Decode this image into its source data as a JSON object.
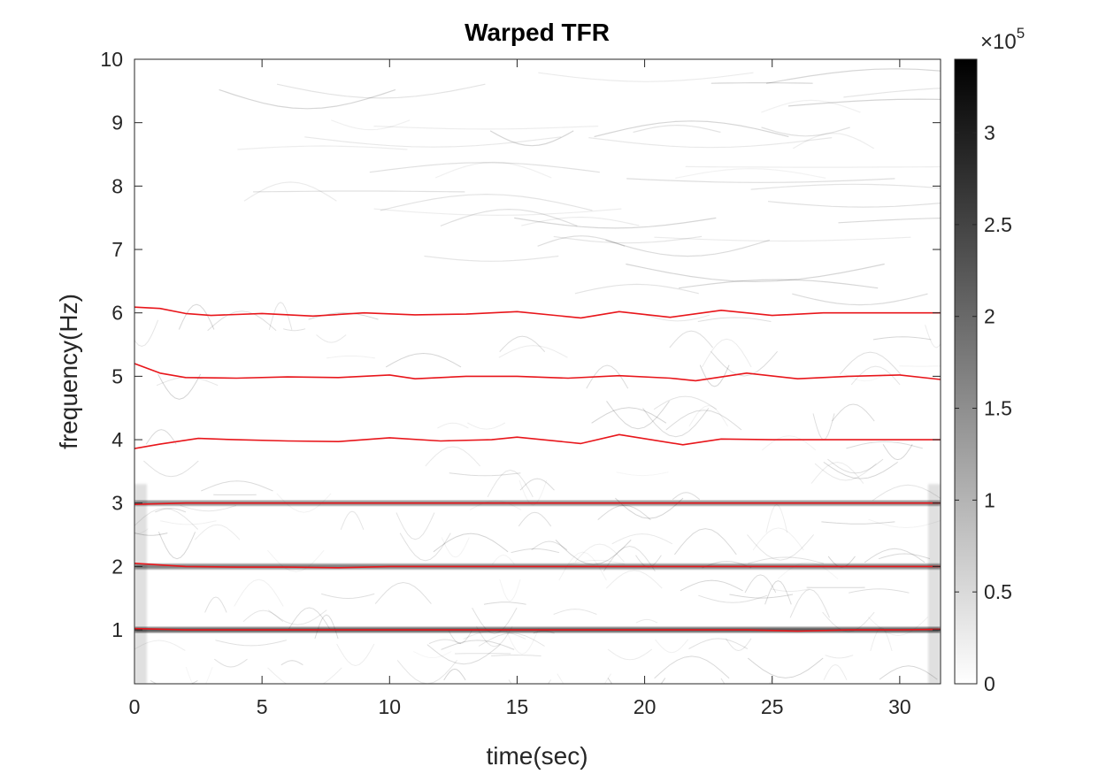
{
  "chart_data": {
    "type": "heatmap",
    "title": "Warped TFR",
    "xlabel": "time(sec)",
    "ylabel": "frequency(Hz)",
    "xlim": [
      0,
      31.6
    ],
    "ylim": [
      0.15,
      10
    ],
    "xticks": [
      0,
      5,
      10,
      15,
      20,
      25,
      30
    ],
    "yticks": [
      1,
      2,
      3,
      4,
      5,
      6,
      7,
      8,
      9,
      10
    ],
    "colormap": "gray-reversed",
    "colorbar": {
      "min": 0,
      "max": 3.4,
      "ticks": [
        0,
        0.5,
        1,
        1.5,
        2,
        2.5,
        3
      ],
      "tick_labels": [
        "0",
        "0.5",
        "1",
        "1.5",
        "2",
        "2.5",
        "3"
      ],
      "exponent_label": "×10",
      "exponent_power": "5"
    },
    "colors": {
      "ridge": "#e8161b",
      "axis": "#262626"
    },
    "ridges": [
      {
        "x": [
          0,
          2,
          4,
          6,
          8,
          10,
          12,
          14,
          16,
          18,
          20,
          22,
          24,
          26,
          28,
          30,
          31.6
        ],
        "y": [
          1.02,
          1.0,
          1.0,
          1.0,
          1.0,
          1.0,
          1.0,
          1.0,
          1.0,
          1.0,
          1.0,
          1.0,
          1.0,
          0.98,
          1.0,
          1.0,
          1.01
        ]
      },
      {
        "x": [
          0,
          2,
          4,
          6,
          8,
          10,
          12,
          14,
          16,
          18,
          20,
          22,
          24,
          26,
          28,
          30,
          31.6
        ],
        "y": [
          2.05,
          2.0,
          1.99,
          1.99,
          1.98,
          2.0,
          2.0,
          2.0,
          2.0,
          2.0,
          2.0,
          2.0,
          2.0,
          2.0,
          2.0,
          2.0,
          2.0
        ]
      },
      {
        "x": [
          0,
          2,
          4,
          6,
          8,
          10,
          12,
          14,
          16,
          18,
          20,
          22,
          24,
          26,
          28,
          30,
          31.6
        ],
        "y": [
          2.98,
          3.0,
          3.0,
          3.0,
          3.0,
          3.0,
          3.0,
          3.0,
          3.0,
          3.0,
          3.0,
          3.0,
          3.0,
          3.0,
          3.0,
          3.0,
          3.0
        ]
      },
      {
        "x": [
          0,
          1,
          2.5,
          4,
          6,
          8,
          10,
          12,
          14,
          15,
          17.5,
          19,
          21.5,
          23,
          25,
          27,
          29,
          31.6
        ],
        "y": [
          3.86,
          3.93,
          4.02,
          4.0,
          3.98,
          3.97,
          4.03,
          3.98,
          4.0,
          4.04,
          3.94,
          4.08,
          3.92,
          4.01,
          4.0,
          4.0,
          4.0,
          4.0
        ]
      },
      {
        "x": [
          0,
          1,
          2,
          4,
          6,
          8,
          10,
          11,
          13,
          15,
          17,
          19,
          21,
          22,
          24,
          26,
          28,
          30,
          31.6
        ],
        "y": [
          5.2,
          5.05,
          4.98,
          4.97,
          4.99,
          4.98,
          5.02,
          4.96,
          5.0,
          5.0,
          4.97,
          5.01,
          4.97,
          4.93,
          5.05,
          4.96,
          5.0,
          5.02,
          4.95
        ]
      },
      {
        "x": [
          0,
          1,
          2,
          3,
          5,
          7,
          9,
          11,
          13,
          15,
          17.5,
          19,
          21,
          23,
          25,
          27,
          29,
          31.6
        ],
        "y": [
          6.09,
          6.07,
          5.99,
          5.96,
          5.99,
          5.95,
          6.0,
          5.97,
          5.98,
          6.02,
          5.92,
          6.02,
          5.93,
          6.04,
          5.96,
          6.0,
          6.0,
          6.0
        ]
      }
    ]
  }
}
